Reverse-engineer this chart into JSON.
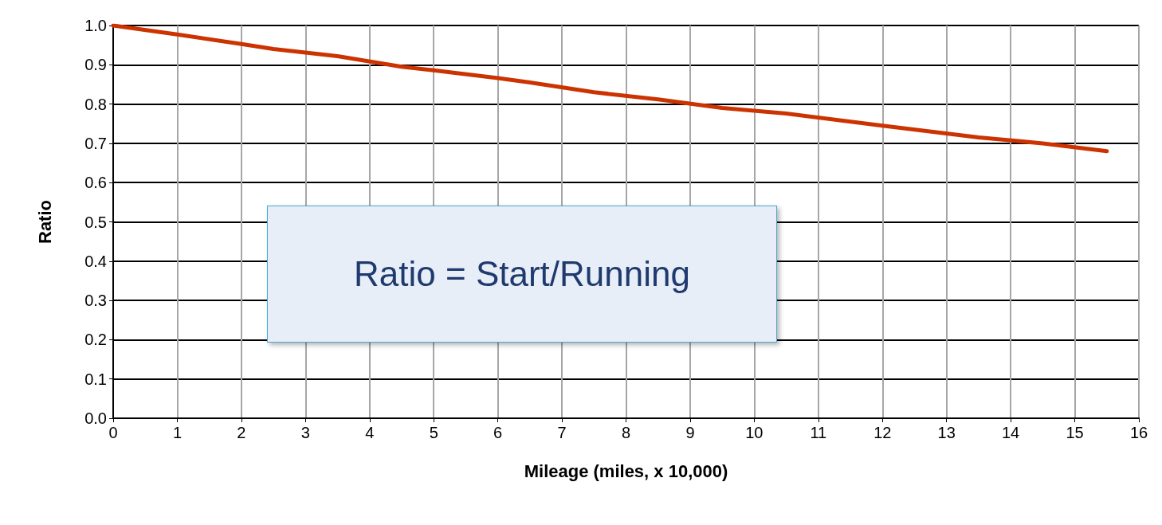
{
  "chart_data": {
    "type": "line",
    "xlabel": "Mileage (miles, x 10,000)",
    "ylabel": "Ratio",
    "x": [
      0,
      1,
      2,
      2.5,
      3.5,
      4.5,
      5,
      6,
      6.5,
      7.5,
      8.5,
      9.5,
      10.5,
      12,
      13.5,
      14.5,
      15.5
    ],
    "series": [
      {
        "color": "#cc3300",
        "values": [
          1.0,
          0.977,
          0.953,
          0.94,
          0.922,
          0.895,
          0.886,
          0.866,
          0.855,
          0.83,
          0.812,
          0.79,
          0.776,
          0.745,
          0.715,
          0.7,
          0.68
        ]
      }
    ],
    "xlim": [
      0,
      16
    ],
    "xticks": [
      0,
      1,
      2,
      3,
      4,
      5,
      6,
      7,
      8,
      9,
      10,
      11,
      12,
      13,
      14,
      15,
      16
    ],
    "ylim": [
      0,
      1
    ],
    "yticks": [
      {
        "value": 0,
        "label": "0.0"
      },
      0.1,
      0.2,
      0.3,
      0.4,
      0.5,
      0.6,
      0.7,
      0.8,
      0.9,
      {
        "value": 1,
        "label": "1.0"
      }
    ],
    "grid": true,
    "marker": "none",
    "line_style": "solid",
    "annotations": [
      "Ratio = Start/Running"
    ]
  }
}
